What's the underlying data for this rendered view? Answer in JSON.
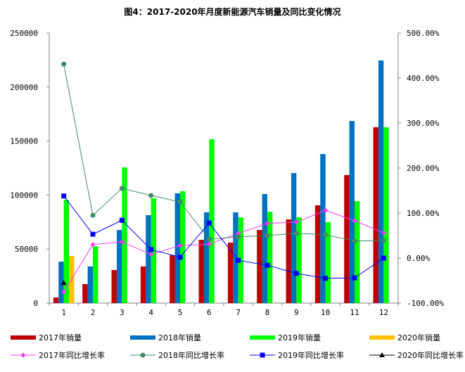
{
  "chart_data": {
    "type": "bar",
    "title": "图4：2017-2020年月度新能源汽车销量及同比变化情况",
    "categories": [
      "1",
      "2",
      "3",
      "4",
      "5",
      "6",
      "7",
      "8",
      "9",
      "10",
      "11",
      "12"
    ],
    "y_left": {
      "range": [
        0,
        250000
      ],
      "ticks": [
        "0",
        "50000",
        "100000",
        "150000",
        "200000",
        "250000"
      ]
    },
    "y_right": {
      "range": [
        -100,
        500
      ],
      "ticks": [
        "-100.00%",
        "0.00%",
        "100.00%",
        "200.00%",
        "300.00%",
        "400.00%",
        "500.00%"
      ]
    },
    "grid": false,
    "legend_position": "bottom",
    "bar_series": [
      {
        "name": "2017年销量",
        "color": "#C00000",
        "values": [
          5200,
          17600,
          30600,
          33900,
          44300,
          58600,
          56000,
          67700,
          77500,
          90500,
          118500,
          162800
        ]
      },
      {
        "name": "2018年销量",
        "color": "#0070C0",
        "values": [
          38400,
          33900,
          67700,
          81400,
          101600,
          84000,
          84000,
          101000,
          120400,
          138000,
          168600,
          224600
        ]
      },
      {
        "name": "2019年销量",
        "color": "#00FF00",
        "values": [
          95700,
          52700,
          125600,
          97000,
          103500,
          151700,
          79400,
          84600,
          79400,
          74900,
          94400,
          162800
        ]
      },
      {
        "name": "2020年销量",
        "color": "#FFC000",
        "values": [
          43600,
          null,
          null,
          null,
          null,
          null,
          null,
          null,
          null,
          null,
          null,
          null
        ]
      }
    ],
    "line_series": [
      {
        "name": "2017年同比增长率",
        "color": "#FF33FF",
        "marker": "diamond",
        "values": [
          -75,
          30,
          36,
          8,
          28,
          31,
          55,
          77,
          80,
          106,
          83,
          56
        ]
      },
      {
        "name": "2018年同比增长率",
        "color": "#3C8C64",
        "marker": "circle",
        "values": [
          431,
          95,
          155,
          139,
          125,
          42,
          47,
          50,
          55,
          52,
          38,
          39
        ]
      },
      {
        "name": "2019年同比增长率",
        "color": "#0000FF",
        "marker": "square",
        "values": [
          138,
          53,
          84,
          19,
          2,
          78,
          -5,
          -16,
          -34,
          -45,
          -44,
          0
        ]
      },
      {
        "name": "2020年同比增长率",
        "color": "#000000",
        "marker": "triangle",
        "values": [
          -55,
          null,
          null,
          null,
          null,
          null,
          null,
          null,
          null,
          null,
          null,
          null
        ]
      }
    ]
  }
}
